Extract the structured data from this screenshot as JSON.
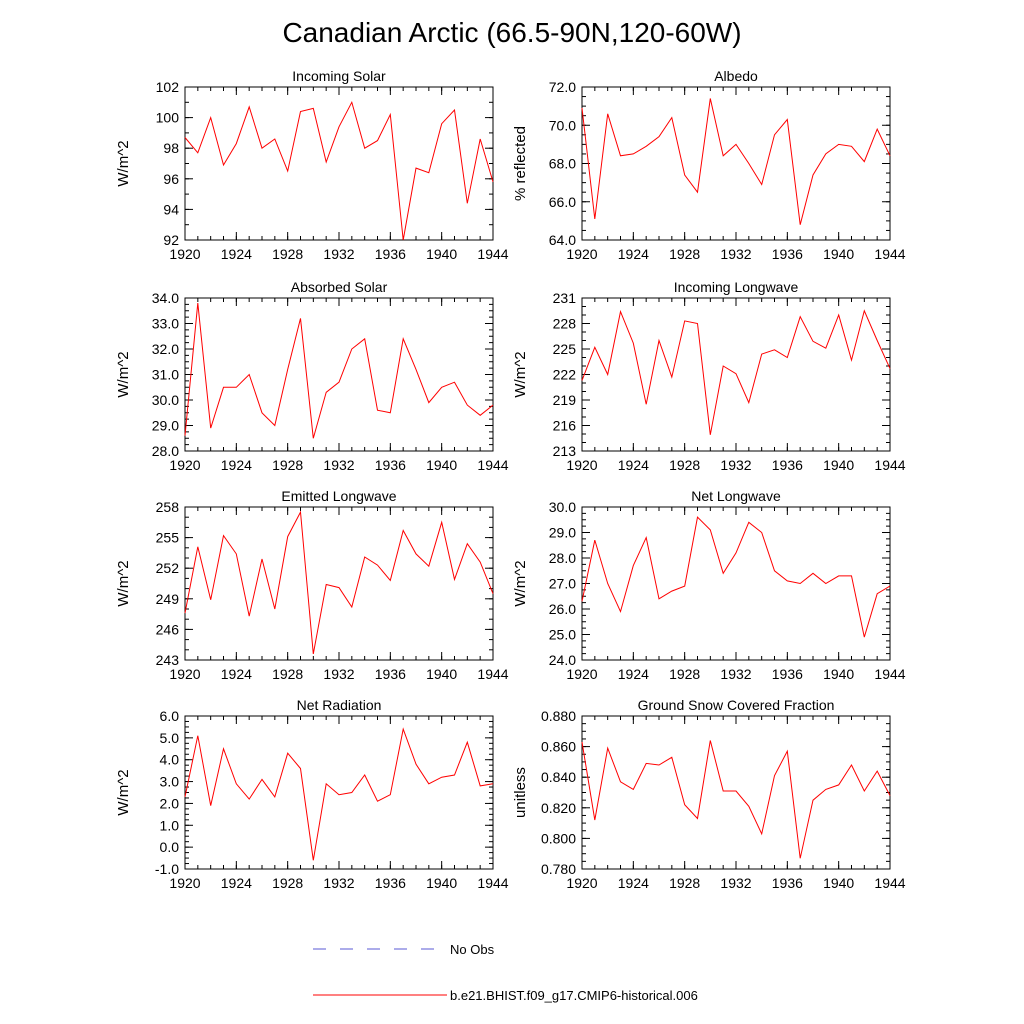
{
  "figure": {
    "title": "Canadian Arctic (66.5-90N,120-60W)",
    "line_color": "#ff0000",
    "obs_color": "#5a5ad6"
  },
  "legend": {
    "obs_label": "No Obs",
    "model_label": "b.e21.BHIST.f09_g17.CMIP6-historical.006"
  },
  "chart_data": [
    {
      "type": "line",
      "title": "Incoming Solar",
      "xlabel": "",
      "ylabel": "W/m^2",
      "xlim": [
        1920,
        1944
      ],
      "ylim": [
        92,
        102
      ],
      "xticks": [
        1920,
        1924,
        1928,
        1932,
        1936,
        1940,
        1944
      ],
      "xtick_labels": [
        "1920",
        "1924",
        "1928",
        "1932",
        "1936",
        "1940",
        "1944"
      ],
      "yticks": [
        92,
        94,
        96,
        98,
        100,
        102
      ],
      "ytick_labels": [
        "92",
        "94",
        "96",
        "98",
        "100",
        "102"
      ],
      "yminor": 1,
      "series": [
        {
          "name": "b.e21.BHIST.f09_g17.CMIP6-historical.006",
          "x": [
            1920,
            1921,
            1922,
            1923,
            1924,
            1925,
            1926,
            1927,
            1928,
            1929,
            1930,
            1931,
            1932,
            1933,
            1934,
            1935,
            1936,
            1937,
            1938,
            1939,
            1940,
            1941,
            1942,
            1943,
            1944
          ],
          "y": [
            98.7,
            97.7,
            100.0,
            96.9,
            98.3,
            100.7,
            98.0,
            98.6,
            96.5,
            100.4,
            100.6,
            97.1,
            99.4,
            101.0,
            98.0,
            98.5,
            100.2,
            92.0,
            96.7,
            96.4,
            99.6,
            100.5,
            94.4,
            98.6,
            95.8
          ]
        }
      ]
    },
    {
      "type": "line",
      "title": "Albedo",
      "xlabel": "",
      "ylabel": "% reflected",
      "xlim": [
        1920,
        1944
      ],
      "ylim": [
        64,
        72
      ],
      "xticks": [
        1920,
        1924,
        1928,
        1932,
        1936,
        1940,
        1944
      ],
      "xtick_labels": [
        "1920",
        "1924",
        "1928",
        "1932",
        "1936",
        "1940",
        "1944"
      ],
      "yticks": [
        64,
        66,
        68,
        70,
        72
      ],
      "ytick_labels": [
        "64.0",
        "66.0",
        "68.0",
        "70.0",
        "72.0"
      ],
      "yminor": 0.5,
      "series": [
        {
          "name": "b.e21.BHIST.f09_g17.CMIP6-historical.006",
          "x": [
            1920,
            1921,
            1922,
            1923,
            1924,
            1925,
            1926,
            1927,
            1928,
            1929,
            1930,
            1931,
            1932,
            1933,
            1934,
            1935,
            1936,
            1937,
            1938,
            1939,
            1940,
            1941,
            1942,
            1943,
            1944
          ],
          "y": [
            70.9,
            65.1,
            70.6,
            68.4,
            68.5,
            68.9,
            69.4,
            70.4,
            67.4,
            66.5,
            71.4,
            68.4,
            69.0,
            68.0,
            66.9,
            69.5,
            70.3,
            64.8,
            67.4,
            68.5,
            69.0,
            68.9,
            68.1,
            69.8,
            68.4
          ]
        }
      ]
    },
    {
      "type": "line",
      "title": "Absorbed Solar",
      "xlabel": "",
      "ylabel": "W/m^2",
      "xlim": [
        1920,
        1944
      ],
      "ylim": [
        28,
        34
      ],
      "xticks": [
        1920,
        1924,
        1928,
        1932,
        1936,
        1940,
        1944
      ],
      "xtick_labels": [
        "1920",
        "1924",
        "1928",
        "1932",
        "1936",
        "1940",
        "1944"
      ],
      "yticks": [
        28,
        29,
        30,
        31,
        32,
        33,
        34
      ],
      "ytick_labels": [
        "28.0",
        "29.0",
        "30.0",
        "31.0",
        "32.0",
        "33.0",
        "34.0"
      ],
      "yminor": 0.25,
      "series": [
        {
          "name": "b.e21.BHIST.f09_g17.CMIP6-historical.006",
          "x": [
            1920,
            1921,
            1922,
            1923,
            1924,
            1925,
            1926,
            1927,
            1928,
            1929,
            1930,
            1931,
            1932,
            1933,
            1934,
            1935,
            1936,
            1937,
            1938,
            1939,
            1940,
            1941,
            1942,
            1943,
            1944
          ],
          "y": [
            28.6,
            33.8,
            28.9,
            30.5,
            30.5,
            31.0,
            29.5,
            29.0,
            31.2,
            33.2,
            28.5,
            30.3,
            30.7,
            32.0,
            32.4,
            29.6,
            29.5,
            32.4,
            31.2,
            29.9,
            30.5,
            30.7,
            29.8,
            29.4,
            29.8
          ]
        }
      ]
    },
    {
      "type": "line",
      "title": "Incoming Longwave",
      "xlabel": "",
      "ylabel": "W/m^2",
      "xlim": [
        1920,
        1944
      ],
      "ylim": [
        213,
        231
      ],
      "xticks": [
        1920,
        1924,
        1928,
        1932,
        1936,
        1940,
        1944
      ],
      "xtick_labels": [
        "1920",
        "1924",
        "1928",
        "1932",
        "1936",
        "1940",
        "1944"
      ],
      "yticks": [
        213,
        216,
        219,
        222,
        225,
        228,
        231
      ],
      "ytick_labels": [
        "213",
        "216",
        "219",
        "222",
        "225",
        "228",
        "231"
      ],
      "yminor": 1,
      "series": [
        {
          "name": "b.e21.BHIST.f09_g17.CMIP6-historical.006",
          "x": [
            1920,
            1921,
            1922,
            1923,
            1924,
            1925,
            1926,
            1927,
            1928,
            1929,
            1930,
            1931,
            1932,
            1933,
            1934,
            1935,
            1936,
            1937,
            1938,
            1939,
            1940,
            1941,
            1942,
            1943,
            1944
          ],
          "y": [
            221.3,
            225.2,
            222.0,
            229.4,
            225.7,
            218.5,
            226.0,
            221.7,
            228.3,
            228.0,
            214.9,
            223.0,
            222.1,
            218.7,
            224.4,
            224.9,
            224.0,
            228.8,
            225.9,
            225.1,
            229.0,
            223.7,
            229.5,
            226.0,
            222.7
          ]
        }
      ]
    },
    {
      "type": "line",
      "title": "Emitted Longwave",
      "xlabel": "",
      "ylabel": "W/m^2",
      "xlim": [
        1920,
        1944
      ],
      "ylim": [
        243,
        258
      ],
      "xticks": [
        1920,
        1924,
        1928,
        1932,
        1936,
        1940,
        1944
      ],
      "xtick_labels": [
        "1920",
        "1924",
        "1928",
        "1932",
        "1936",
        "1940",
        "1944"
      ],
      "yticks": [
        243,
        246,
        249,
        252,
        255,
        258
      ],
      "ytick_labels": [
        "243",
        "246",
        "249",
        "252",
        "255",
        "258"
      ],
      "yminor": 1,
      "series": [
        {
          "name": "b.e21.BHIST.f09_g17.CMIP6-historical.006",
          "x": [
            1920,
            1921,
            1922,
            1923,
            1924,
            1925,
            1926,
            1927,
            1928,
            1929,
            1930,
            1931,
            1932,
            1933,
            1934,
            1935,
            1936,
            1937,
            1938,
            1939,
            1940,
            1941,
            1942,
            1943,
            1944
          ],
          "y": [
            247.6,
            254.1,
            248.9,
            255.2,
            253.4,
            247.3,
            252.9,
            248.0,
            255.1,
            257.5,
            243.6,
            250.4,
            250.1,
            248.2,
            253.1,
            252.3,
            250.8,
            255.7,
            253.4,
            252.2,
            256.5,
            250.9,
            254.4,
            252.6,
            249.5
          ]
        }
      ]
    },
    {
      "type": "line",
      "title": "Net Longwave",
      "xlabel": "",
      "ylabel": "W/m^2",
      "xlim": [
        1920,
        1944
      ],
      "ylim": [
        24,
        30
      ],
      "xticks": [
        1920,
        1924,
        1928,
        1932,
        1936,
        1940,
        1944
      ],
      "xtick_labels": [
        "1920",
        "1924",
        "1928",
        "1932",
        "1936",
        "1940",
        "1944"
      ],
      "yticks": [
        24,
        25,
        26,
        27,
        28,
        29,
        30
      ],
      "ytick_labels": [
        "24.0",
        "25.0",
        "26.0",
        "27.0",
        "28.0",
        "29.0",
        "30.0"
      ],
      "yminor": 0.25,
      "series": [
        {
          "name": "b.e21.BHIST.f09_g17.CMIP6-historical.006",
          "x": [
            1920,
            1921,
            1922,
            1923,
            1924,
            1925,
            1926,
            1927,
            1928,
            1929,
            1930,
            1931,
            1932,
            1933,
            1934,
            1935,
            1936,
            1937,
            1938,
            1939,
            1940,
            1941,
            1942,
            1943,
            1944
          ],
          "y": [
            26.3,
            28.7,
            27.0,
            25.9,
            27.7,
            28.8,
            26.4,
            26.7,
            26.9,
            29.6,
            29.1,
            27.4,
            28.2,
            29.4,
            29.0,
            27.5,
            27.1,
            27.0,
            27.4,
            27.0,
            27.3,
            27.3,
            24.9,
            26.6,
            26.9
          ]
        }
      ]
    },
    {
      "type": "line",
      "title": "Net Radiation",
      "xlabel": "",
      "ylabel": "W/m^2",
      "xlim": [
        1920,
        1944
      ],
      "ylim": [
        -1,
        6
      ],
      "xticks": [
        1920,
        1924,
        1928,
        1932,
        1936,
        1940,
        1944
      ],
      "xtick_labels": [
        "1920",
        "1924",
        "1928",
        "1932",
        "1936",
        "1940",
        "1944"
      ],
      "yticks": [
        -1,
        0,
        1,
        2,
        3,
        4,
        5,
        6
      ],
      "ytick_labels": [
        "-1.0",
        "0.0",
        "1.0",
        "2.0",
        "3.0",
        "4.0",
        "5.0",
        "6.0"
      ],
      "yminor": 0.25,
      "series": [
        {
          "name": "b.e21.BHIST.f09_g17.CMIP6-historical.006",
          "x": [
            1920,
            1921,
            1922,
            1923,
            1924,
            1925,
            1926,
            1927,
            1928,
            1929,
            1930,
            1931,
            1932,
            1933,
            1934,
            1935,
            1936,
            1937,
            1938,
            1939,
            1940,
            1941,
            1942,
            1943,
            1944
          ],
          "y": [
            2.3,
            5.1,
            1.9,
            4.5,
            2.9,
            2.2,
            3.1,
            2.3,
            4.3,
            3.6,
            -0.6,
            2.9,
            2.4,
            2.5,
            3.3,
            2.1,
            2.4,
            5.4,
            3.8,
            2.9,
            3.2,
            3.3,
            4.8,
            2.8,
            2.9
          ]
        }
      ]
    },
    {
      "type": "line",
      "title": "Ground Snow Covered Fraction",
      "xlabel": "",
      "ylabel": "unitless",
      "xlim": [
        1920,
        1944
      ],
      "ylim": [
        0.78,
        0.88
      ],
      "xticks": [
        1920,
        1924,
        1928,
        1932,
        1936,
        1940,
        1944
      ],
      "xtick_labels": [
        "1920",
        "1924",
        "1928",
        "1932",
        "1936",
        "1940",
        "1944"
      ],
      "yticks": [
        0.78,
        0.8,
        0.82,
        0.84,
        0.86,
        0.88
      ],
      "ytick_labels": [
        "0.780",
        "0.800",
        "0.820",
        "0.840",
        "0.860",
        "0.880"
      ],
      "yminor": 0.005,
      "series": [
        {
          "name": "b.e21.BHIST.f09_g17.CMIP6-historical.006",
          "x": [
            1920,
            1921,
            1922,
            1923,
            1924,
            1925,
            1926,
            1927,
            1928,
            1929,
            1930,
            1931,
            1932,
            1933,
            1934,
            1935,
            1936,
            1937,
            1938,
            1939,
            1940,
            1941,
            1942,
            1943,
            1944
          ],
          "y": [
            0.863,
            0.812,
            0.859,
            0.837,
            0.832,
            0.849,
            0.848,
            0.853,
            0.822,
            0.813,
            0.864,
            0.831,
            0.831,
            0.821,
            0.803,
            0.841,
            0.857,
            0.787,
            0.825,
            0.832,
            0.835,
            0.848,
            0.831,
            0.844,
            0.828
          ]
        }
      ]
    }
  ]
}
